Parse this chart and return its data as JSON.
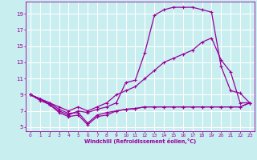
{
  "xlabel": "Windchill (Refroidissement éolien,°C)",
  "background_color": "#c8eef0",
  "grid_color": "#ffffff",
  "line_color": "#990099",
  "xlim": [
    -0.5,
    23.5
  ],
  "ylim": [
    4.5,
    20.5
  ],
  "yticks": [
    5,
    7,
    9,
    11,
    13,
    15,
    17,
    19
  ],
  "xticks": [
    0,
    1,
    2,
    3,
    4,
    5,
    6,
    7,
    8,
    9,
    10,
    11,
    12,
    13,
    14,
    15,
    16,
    17,
    18,
    19,
    20,
    21,
    22,
    23
  ],
  "series1_x": [
    0,
    1,
    2,
    3,
    4,
    5,
    6,
    7,
    8,
    9,
    10,
    11,
    12,
    13,
    14,
    15,
    16,
    17,
    18,
    19,
    20,
    21,
    22,
    23
  ],
  "series1_y": [
    9.0,
    8.5,
    8.0,
    7.2,
    6.7,
    6.8,
    5.5,
    6.5,
    6.8,
    7.0,
    7.2,
    7.3,
    7.5,
    7.5,
    7.5,
    7.5,
    7.5,
    7.5,
    7.5,
    7.5,
    7.5,
    7.5,
    7.5,
    8.0
  ],
  "series2_x": [
    0,
    1,
    2,
    3,
    4,
    5,
    6,
    7,
    8,
    9,
    10,
    11,
    12,
    13,
    14,
    15,
    16,
    17,
    18,
    19,
    20,
    21,
    22,
    23
  ],
  "series2_y": [
    9.0,
    8.5,
    7.8,
    7.0,
    6.5,
    7.0,
    6.8,
    7.2,
    7.5,
    8.0,
    10.5,
    10.8,
    14.2,
    18.8,
    19.5,
    19.8,
    19.8,
    19.8,
    19.5,
    19.2,
    12.5,
    9.5,
    9.2,
    8.0
  ],
  "series3_x": [
    0,
    1,
    2,
    3,
    4,
    5,
    6,
    7,
    8,
    9,
    10,
    11,
    12,
    13,
    14,
    15,
    16,
    17,
    18,
    19,
    20,
    21,
    22,
    23
  ],
  "series3_y": [
    9.0,
    8.5,
    8.0,
    7.5,
    7.0,
    7.5,
    7.0,
    7.5,
    8.0,
    9.0,
    9.5,
    10.0,
    11.0,
    12.0,
    13.0,
    13.5,
    14.0,
    14.5,
    15.5,
    16.0,
    13.3,
    11.8,
    8.0,
    8.0
  ],
  "series4_x": [
    0,
    1,
    2,
    3,
    4,
    5,
    6,
    7,
    8,
    9,
    10,
    11,
    12,
    13,
    14,
    15,
    16,
    17,
    18,
    19,
    20,
    21,
    22,
    23
  ],
  "series4_y": [
    9.0,
    8.3,
    7.8,
    6.8,
    6.3,
    6.5,
    5.3,
    6.3,
    6.5,
    7.0,
    7.2,
    7.3,
    7.5,
    7.5,
    7.5,
    7.5,
    7.5,
    7.5,
    7.5,
    7.5,
    7.5,
    7.5,
    7.5,
    8.0
  ]
}
